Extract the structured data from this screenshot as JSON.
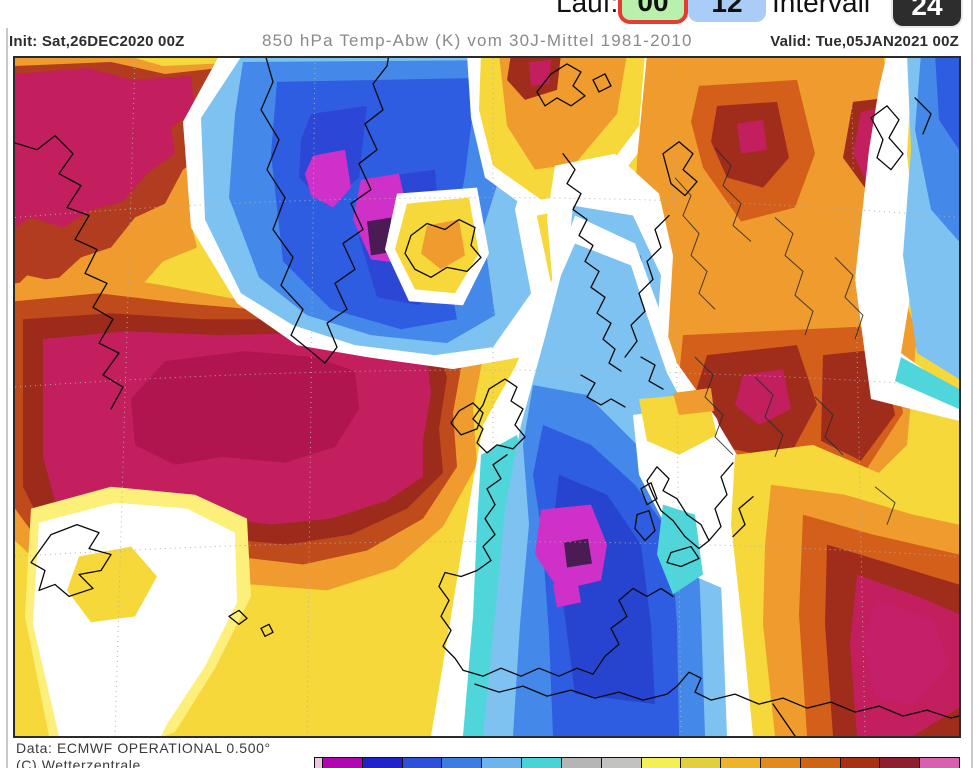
{
  "toolbar": {
    "lauf_label": "Lauf:",
    "run_buttons": [
      {
        "label": "00",
        "selected": true
      },
      {
        "label": "12",
        "selected": false
      }
    ],
    "intervall_label": "Intervall",
    "intervall_value": "24",
    "colors": {
      "run_selected_bg": "#b9f1ac",
      "run_selected_border": "#e63c30",
      "run_bg": "#a9cdf7",
      "intervall_value_bg": "#2d2d2d"
    }
  },
  "map_header": {
    "init": "Init: Sat,26DEC2020 00Z",
    "subject": "850 hPa Temp-Abw (K) vom 30J-Mittel 1981-2010",
    "valid": "Valid: Tue,05JAN2021 00Z"
  },
  "map": {
    "description": "850 hPa temperature anomaly (K) vs 1981-2010 mean, Europe / North Atlantic",
    "warm_anomaly_color": "#c31e5e",
    "cold_anomaly_color": "#ce30c8"
  },
  "map_footer": {
    "source": "Data: ECMWF OPERATIONAL 0.500°",
    "copyright": "(C) Wetterzentrale"
  },
  "colorbar": {
    "edge_color": "#eec6e2",
    "colors": [
      "#b007b0",
      "#2222cc",
      "#2e4fd8",
      "#3f7ce2",
      "#6db4ec",
      "#49d3d6",
      "#b5b5b5",
      "#c2c2c0",
      "#f2ef57",
      "#e2cf3e",
      "#ecb32b",
      "#e28a1d",
      "#cf6414",
      "#a83114",
      "#8f1f2e",
      "#d95fb1"
    ]
  }
}
